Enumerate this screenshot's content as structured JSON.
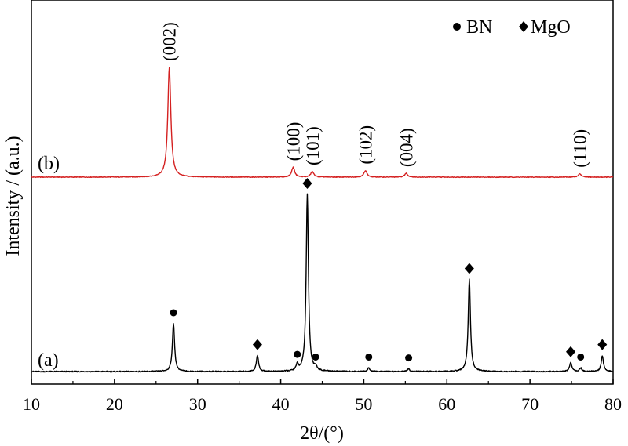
{
  "chart_data": {
    "type": "line",
    "xlabel": "2θ/(°)",
    "ylabel": "Intensity / (a.u.)",
    "xlim": [
      10,
      80
    ],
    "xticks": [
      "10",
      "20",
      "30",
      "40",
      "50",
      "60",
      "70",
      "80"
    ],
    "yticks": [],
    "grid": false,
    "legend": {
      "position": "top-right",
      "entries": [
        {
          "marker": "circle",
          "label": "BN"
        },
        {
          "marker": "diamond",
          "label": "MgO"
        }
      ]
    },
    "colors": {
      "a": "#000000",
      "b": "#d42020"
    },
    "series": [
      {
        "tag": "(b)",
        "color": "#d42020",
        "peaks": [
          {
            "x": 26.6,
            "h": 1.0,
            "label": "(002)"
          },
          {
            "x": 41.5,
            "h": 0.09,
            "label": "(100)"
          },
          {
            "x": 43.8,
            "h": 0.05,
            "label": "(101)"
          },
          {
            "x": 50.2,
            "h": 0.06,
            "label": "(102)"
          },
          {
            "x": 55.1,
            "h": 0.035,
            "label": "(004)"
          },
          {
            "x": 76.0,
            "h": 0.03,
            "label": "(110)"
          }
        ]
      },
      {
        "tag": "(a)",
        "color": "#000000",
        "peaks": [
          {
            "x": 27.1,
            "h": 0.27,
            "marker": "circle"
          },
          {
            "x": 37.2,
            "h": 0.09,
            "marker": "diamond"
          },
          {
            "x": 42.0,
            "h": 0.035,
            "marker": "circle"
          },
          {
            "x": 43.2,
            "h": 1.0,
            "marker": "diamond"
          },
          {
            "x": 44.2,
            "h": 0.02,
            "marker": "circle"
          },
          {
            "x": 50.6,
            "h": 0.02,
            "marker": "circle"
          },
          {
            "x": 55.4,
            "h": 0.015,
            "marker": "circle"
          },
          {
            "x": 62.7,
            "h": 0.52,
            "marker": "diamond"
          },
          {
            "x": 74.9,
            "h": 0.05,
            "marker": "diamond"
          },
          {
            "x": 76.1,
            "h": 0.02,
            "marker": "circle"
          },
          {
            "x": 78.7,
            "h": 0.09,
            "marker": "diamond"
          }
        ]
      }
    ]
  }
}
